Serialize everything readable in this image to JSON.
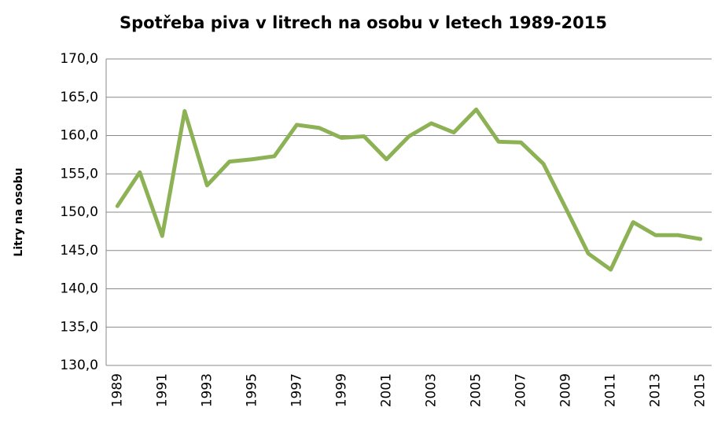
{
  "chart_data": {
    "type": "line",
    "title": "Spotřeba piva v litrech na osobu v letech 1989-2015",
    "y_label": "Litry na osobu",
    "categories": [
      "1989",
      null,
      "1991",
      null,
      "1993",
      null,
      "1995",
      null,
      "1997",
      null,
      "1999",
      null,
      "2001",
      null,
      "2003",
      null,
      "2005",
      null,
      "2007",
      null,
      "2009",
      null,
      "2011",
      null,
      "2013",
      null,
      "2015"
    ],
    "series": [
      {
        "name": "Litry na osobu",
        "color": "#8db255",
        "values": [
          150.8,
          155.2,
          146.9,
          163.2,
          153.5,
          156.6,
          156.9,
          157.3,
          161.4,
          161.0,
          159.7,
          159.9,
          156.9,
          159.9,
          161.6,
          160.4,
          163.4,
          159.2,
          159.1,
          156.3,
          150.5,
          144.6,
          142.5,
          148.7,
          147.0,
          147.0,
          146.5
        ]
      }
    ],
    "ylim": [
      130,
      170
    ],
    "yticks": [
      {
        "value": 130,
        "label": "130,0"
      },
      {
        "value": 135,
        "label": "135,0"
      },
      {
        "value": 140,
        "label": "140,0"
      },
      {
        "value": 145,
        "label": "145,0"
      },
      {
        "value": 150,
        "label": "150,0"
      },
      {
        "value": 155,
        "label": "155,0"
      },
      {
        "value": 160,
        "label": "160,0"
      },
      {
        "value": 165,
        "label": "165,0"
      },
      {
        "value": 170,
        "label": "170,0"
      }
    ],
    "grid": true
  }
}
